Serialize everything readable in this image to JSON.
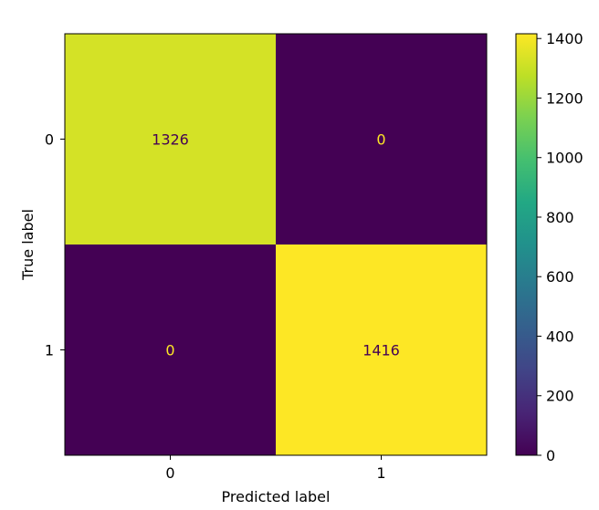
{
  "chart_data": {
    "type": "heatmap",
    "title": "",
    "xlabel": "Predicted label",
    "ylabel": "True label",
    "x_categories": [
      "0",
      "1"
    ],
    "y_categories": [
      "0",
      "1"
    ],
    "values": [
      [
        1326,
        0
      ],
      [
        0,
        1416
      ]
    ],
    "value_labels": [
      [
        "1326",
        "0"
      ],
      [
        "0",
        "1416"
      ]
    ],
    "colormap": "viridis",
    "color_range": [
      0,
      1416
    ],
    "colorbar_ticks": [
      0,
      200,
      400,
      600,
      800,
      1000,
      1200,
      1400
    ],
    "colorbar_tick_labels": [
      "0",
      "200",
      "400",
      "600",
      "800",
      "1000",
      "1200",
      "1400"
    ],
    "text_color_dark_cell": "#fde725",
    "text_color_light_cell": "#440154",
    "grid": false
  }
}
